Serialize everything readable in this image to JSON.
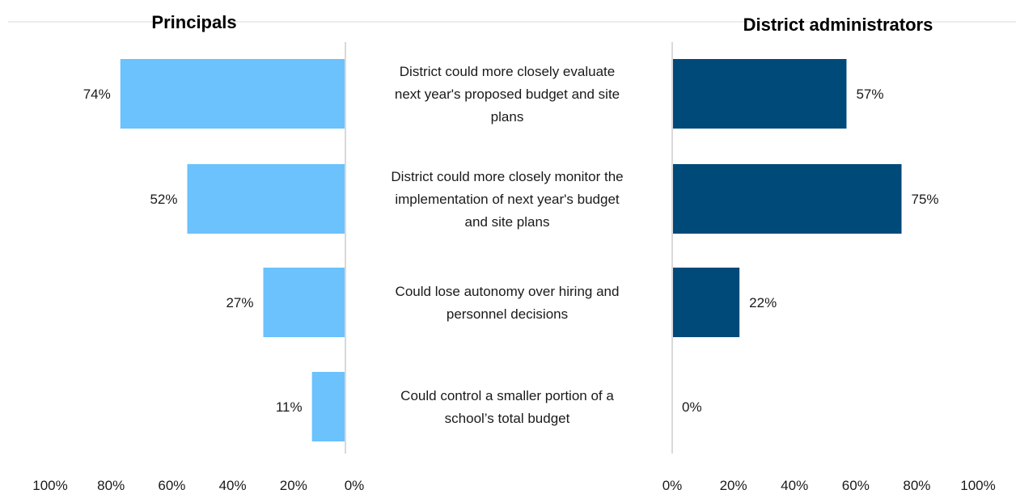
{
  "chart_data": {
    "type": "bar",
    "orientation": "horizontal-butterfly",
    "categories": [
      "District could more closely evaluate next year's proposed budget and site plans",
      "District could more closely monitor the implementation of next year's budget and site plans",
      "Could lose autonomy over hiring and personnel decisions",
      "Could control a smaller portion of a school’s total budget"
    ],
    "category_lines": [
      [
        "District could more closely evaluate",
        "next year's proposed budget and site",
        "plans"
      ],
      [
        "District could more closely monitor the",
        "implementation of next year's budget",
        "and site plans"
      ],
      [
        "Could lose autonomy over hiring and",
        "personnel decisions"
      ],
      [
        "Could control a smaller portion of a",
        "school’s total budget"
      ]
    ],
    "series": [
      {
        "name": "Principals",
        "side": "left",
        "color": "#6BC2FC",
        "values": [
          74,
          52,
          27,
          11
        ],
        "labels": [
          "74%",
          "52%",
          "27%",
          "11%"
        ]
      },
      {
        "name": "District administrators",
        "side": "right",
        "color": "#004A7A",
        "values": [
          57,
          75,
          22,
          0
        ],
        "labels": [
          "57%",
          "75%",
          "22%",
          "0%"
        ]
      }
    ],
    "xlim": [
      0,
      100
    ],
    "left_ticks": [
      "100%",
      "80%",
      "60%",
      "40%",
      "20%",
      "0%"
    ],
    "right_ticks": [
      "0%",
      "20%",
      "40%",
      "60%",
      "80%",
      "100%"
    ],
    "grid": false,
    "legend": "none"
  }
}
